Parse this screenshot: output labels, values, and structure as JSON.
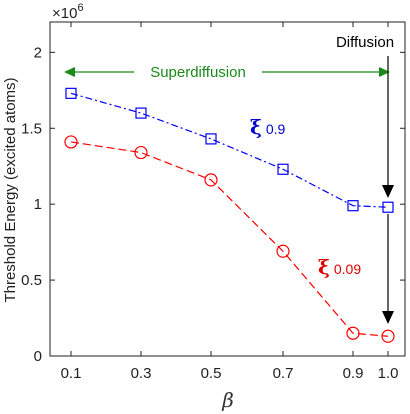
{
  "chart_data": {
    "type": "line",
    "x": [
      0.1,
      0.3,
      0.5,
      0.7,
      0.9,
      1.0
    ],
    "x_tick_labels": [
      "0.1",
      "0.3",
      "0.5",
      "0.7",
      "0.9",
      "1.0"
    ],
    "y_tick_labels": [
      "0",
      "0.5",
      "1",
      "1.5",
      "2"
    ],
    "y_ticks": [
      0,
      0.5,
      1,
      1.5,
      2
    ],
    "ylim": [
      0,
      2.2
    ],
    "y_scale_label": "×10",
    "y_scale_exponent": "6",
    "ylabel": "Threshold Energy (excited atoms)",
    "xlabel": "β",
    "series": [
      {
        "values": [
          1.73,
          1.6,
          1.43,
          1.23,
          0.99,
          0.98
        ],
        "color": "#0000ff",
        "marker": "square",
        "line_style": "dash-dot"
      },
      {
        "values": [
          1.41,
          1.34,
          1.16,
          0.69,
          0.15,
          0.13
        ],
        "color": "#ff0000",
        "marker": "circle",
        "line_style": "dashed"
      }
    ],
    "annotations": {
      "superdiffusion": {
        "text": "Superdiffusion",
        "color": "#1a8a1a"
      },
      "diffusion": {
        "text": "Diffusion",
        "color": "#000000"
      },
      "xi_blue": {
        "symbol": "ξ",
        "value": "0.9",
        "color": "#0000cc"
      },
      "xi_red": {
        "symbol": "ξ",
        "value": "0.09",
        "color": "#dd0000"
      }
    },
    "grid": false
  }
}
